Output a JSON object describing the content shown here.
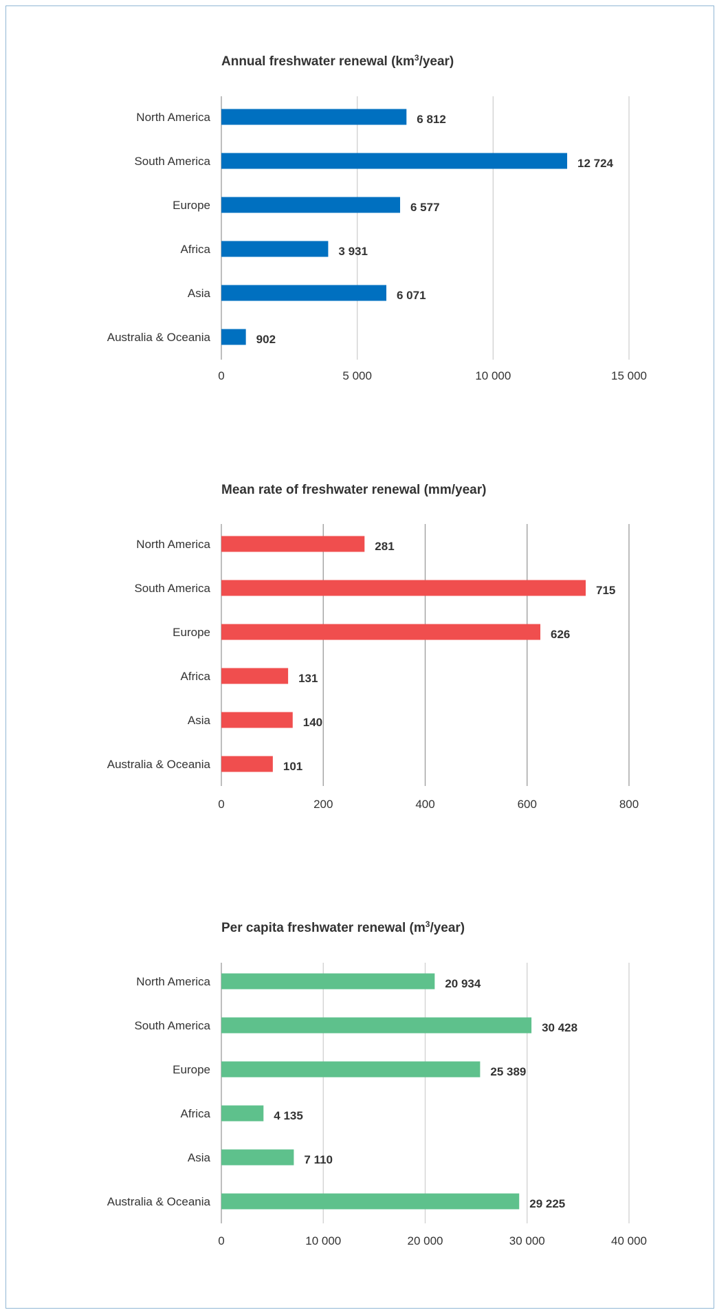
{
  "chart_data": [
    {
      "type": "bar",
      "orientation": "horizontal",
      "title_main": "Annual freshwater renewal (km",
      "title_sup": "3",
      "title_end": "/year)",
      "categories": [
        "North America",
        "South America",
        "Europe",
        "Africa",
        "Asia",
        "Australia & Oceania"
      ],
      "values": [
        6812,
        12724,
        6577,
        3931,
        6071,
        902
      ],
      "value_labels": [
        "6 812",
        "12 724",
        "6 577",
        "3 931",
        "6 071",
        "902"
      ],
      "ticks": [
        0,
        5000,
        10000,
        15000
      ],
      "tick_labels": [
        "0",
        "5 000",
        "10 000",
        "15 000"
      ],
      "xlim": [
        0,
        15000
      ],
      "grid": true,
      "color": "#0070c0"
    },
    {
      "type": "bar",
      "orientation": "horizontal",
      "title_main": "Mean rate of freshwater renewal (mm/year)",
      "title_sup": "",
      "title_end": "",
      "categories": [
        "North America",
        "South America",
        "Europe",
        "Africa",
        "Asia",
        "Australia & Oceania"
      ],
      "values": [
        281,
        715,
        626,
        131,
        140,
        101
      ],
      "value_labels": [
        "281",
        "715",
        "626",
        "131",
        "140",
        "101"
      ],
      "ticks": [
        0,
        200,
        400,
        600,
        800
      ],
      "tick_labels": [
        "0",
        "200",
        "400",
        "600",
        "800"
      ],
      "xlim": [
        0,
        800
      ],
      "grid": true,
      "color": "#f04e4e"
    },
    {
      "type": "bar",
      "orientation": "horizontal",
      "title_main": "Per capita freshwater renewal (m",
      "title_sup": "3",
      "title_end": "/year)",
      "categories": [
        "North America",
        "South America",
        "Europe",
        "Africa",
        "Asia",
        "Australia & Oceania"
      ],
      "values": [
        20934,
        30428,
        25389,
        4135,
        7110,
        29225
      ],
      "value_labels": [
        "20 934",
        "30 428",
        "25 389",
        "4 135",
        "7 110",
        "29 225"
      ],
      "ticks": [
        0,
        10000,
        20000,
        30000,
        40000
      ],
      "tick_labels": [
        "0",
        "10 000",
        "20 000",
        "30 000",
        "40 000"
      ],
      "xlim": [
        0,
        40000
      ],
      "grid": true,
      "color": "#5ec18c"
    }
  ]
}
